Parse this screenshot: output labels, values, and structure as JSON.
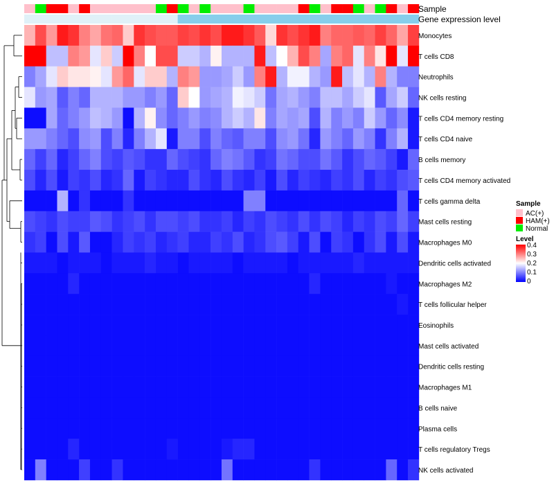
{
  "chart_data": {
    "type": "heatmap",
    "annotation_tracks": [
      {
        "name": "Sample",
        "values": [
          "AC(+)",
          "Normal",
          "HAM(+)",
          "HAM(+)",
          "AC(+)",
          "HAM(+)",
          "AC(+)",
          "AC(+)",
          "AC(+)",
          "AC(+)",
          "AC(+)",
          "AC(+)",
          "Normal",
          "HAM(+)",
          "Normal",
          "AC(+)",
          "Normal",
          "AC(+)",
          "AC(+)",
          "AC(+)",
          "Normal",
          "AC(+)",
          "AC(+)",
          "AC(+)",
          "AC(+)",
          "HAM(+)",
          "Normal",
          "AC(+)",
          "HAM(+)",
          "HAM(+)",
          "Normal",
          "AC(+)",
          "Normal",
          "HAM(+)",
          "AC(+)",
          "HAM(+)"
        ]
      },
      {
        "name": "Gene expression level",
        "values": [
          "low",
          "low",
          "low",
          "low",
          "low",
          "low",
          "low",
          "low",
          "low",
          "low",
          "low",
          "low",
          "low",
          "low",
          "high",
          "high",
          "high",
          "high",
          "high",
          "high",
          "high",
          "high",
          "high",
          "high",
          "high",
          "high",
          "high",
          "high",
          "high",
          "high",
          "high",
          "high",
          "high",
          "high",
          "high",
          "high"
        ]
      }
    ],
    "sample_colors": {
      "AC(+)": "#ffc0cb",
      "HAM(+)": "#ff0000",
      "Normal": "#00ee00"
    },
    "expression_colors": {
      "low": "#e0f1f8",
      "high": "#87ceeb"
    },
    "rows": [
      "Monocytes",
      "T cells CD8",
      "Neutrophils",
      "NK cells resting",
      "T cells CD4 memory resting",
      "T cells CD4 naive",
      "B cells memory",
      "T cells CD4 memory activated",
      "T cells gamma delta",
      "Mast cells resting",
      "Macrophages M0",
      "Dendritic cells activated",
      "Macrophages M2",
      "T cells follicular helper",
      "Eosinophils",
      "Mast cells activated",
      "Dendritic cells resting",
      "Macrophages M1",
      "B cells naive",
      "Plasma cells",
      "T cells regulatory  Tregs",
      "NK cells activated"
    ],
    "values": [
      [
        0.26,
        0.34,
        0.28,
        0.38,
        0.36,
        0.3,
        0.27,
        0.31,
        0.32,
        0.24,
        0.36,
        0.34,
        0.33,
        0.33,
        0.35,
        0.34,
        0.36,
        0.34,
        0.38,
        0.38,
        0.36,
        0.33,
        0.23,
        0.36,
        0.34,
        0.36,
        0.38,
        0.3,
        0.32,
        0.32,
        0.33,
        0.32,
        0.35,
        0.32,
        0.27,
        0.35
      ],
      [
        0.4,
        0.4,
        0.15,
        0.15,
        0.3,
        0.28,
        0.18,
        0.24,
        0.16,
        0.4,
        0.3,
        0.2,
        0.34,
        0.34,
        0.16,
        0.16,
        0.14,
        0.21,
        0.14,
        0.14,
        0.14,
        0.38,
        0.15,
        0.2,
        0.26,
        0.34,
        0.3,
        0.13,
        0.3,
        0.32,
        0.18,
        0.3,
        0.22,
        0.4,
        0.18,
        0.4
      ],
      [
        0.1,
        0.13,
        0.18,
        0.24,
        0.22,
        0.22,
        0.21,
        0.18,
        0.28,
        0.32,
        0.18,
        0.24,
        0.24,
        0.14,
        0.3,
        0.28,
        0.12,
        0.12,
        0.13,
        0.16,
        0.12,
        0.3,
        0.38,
        0.14,
        0.19,
        0.19,
        0.14,
        0.12,
        0.38,
        0.15,
        0.18,
        0.14,
        0.3,
        0.14,
        0.1,
        0.1
      ],
      [
        0.18,
        0.12,
        0.13,
        0.07,
        0.1,
        0.08,
        0.14,
        0.14,
        0.14,
        0.12,
        0.12,
        0.1,
        0.12,
        0.08,
        0.24,
        0.2,
        0.12,
        0.13,
        0.14,
        0.19,
        0.18,
        0.16,
        0.09,
        0.13,
        0.14,
        0.12,
        0.1,
        0.15,
        0.15,
        0.13,
        0.16,
        0.18,
        0.07,
        0.13,
        0.16,
        0.08
      ],
      [
        0.01,
        0.01,
        0.13,
        0.08,
        0.1,
        0.12,
        0.15,
        0.14,
        0.12,
        0.01,
        0.14,
        0.21,
        0.11,
        0.08,
        0.1,
        0.12,
        0.1,
        0.11,
        0.14,
        0.16,
        0.14,
        0.22,
        0.1,
        0.13,
        0.12,
        0.13,
        0.06,
        0.14,
        0.1,
        0.12,
        0.1,
        0.16,
        0.12,
        0.08,
        0.11,
        0.02
      ],
      [
        0.12,
        0.12,
        0.1,
        0.08,
        0.06,
        0.11,
        0.12,
        0.06,
        0.1,
        0.03,
        0.1,
        0.14,
        0.18,
        0.02,
        0.1,
        0.1,
        0.06,
        0.1,
        0.08,
        0.07,
        0.1,
        0.1,
        0.06,
        0.11,
        0.12,
        0.09,
        0.03,
        0.12,
        0.1,
        0.08,
        0.12,
        0.1,
        0.04,
        0.1,
        0.14,
        0.02
      ],
      [
        0.08,
        0.05,
        0.08,
        0.03,
        0.05,
        0.08,
        0.1,
        0.06,
        0.05,
        0.07,
        0.06,
        0.04,
        0.04,
        0.08,
        0.06,
        0.05,
        0.04,
        0.08,
        0.1,
        0.09,
        0.07,
        0.04,
        0.05,
        0.09,
        0.08,
        0.06,
        0.06,
        0.09,
        0.07,
        0.04,
        0.06,
        0.08,
        0.07,
        0.05,
        0.02,
        0.08
      ],
      [
        0.06,
        0.03,
        0.06,
        0.02,
        0.05,
        0.04,
        0.06,
        0.03,
        0.04,
        0.08,
        0.02,
        0.05,
        0.04,
        0.03,
        0.03,
        0.06,
        0.04,
        0.03,
        0.06,
        0.04,
        0.03,
        0.05,
        0.02,
        0.06,
        0.03,
        0.05,
        0.04,
        0.03,
        0.05,
        0.04,
        0.06,
        0.03,
        0.05,
        0.04,
        0.06,
        0.07
      ],
      [
        0.01,
        0.01,
        0.01,
        0.14,
        0.01,
        0.04,
        0.01,
        0.01,
        0.01,
        0.04,
        0.01,
        0.01,
        0.01,
        0.01,
        0.01,
        0.01,
        0.01,
        0.01,
        0.01,
        0.01,
        0.1,
        0.1,
        0.01,
        0.01,
        0.01,
        0.01,
        0.01,
        0.01,
        0.01,
        0.01,
        0.01,
        0.01,
        0.01,
        0.01,
        0.08,
        0.01
      ],
      [
        0.06,
        0.05,
        0.04,
        0.06,
        0.05,
        0.05,
        0.07,
        0.06,
        0.04,
        0.05,
        0.06,
        0.04,
        0.06,
        0.06,
        0.05,
        0.06,
        0.04,
        0.04,
        0.05,
        0.03,
        0.05,
        0.04,
        0.06,
        0.05,
        0.04,
        0.06,
        0.04,
        0.06,
        0.05,
        0.03,
        0.05,
        0.04,
        0.06,
        0.05,
        0.08,
        0.05
      ],
      [
        0.04,
        0.05,
        0.01,
        0.06,
        0.02,
        0.07,
        0.01,
        0.01,
        0.03,
        0.05,
        0.04,
        0.05,
        0.03,
        0.04,
        0.05,
        0.03,
        0.03,
        0.05,
        0.04,
        0.06,
        0.03,
        0.04,
        0.06,
        0.07,
        0.05,
        0.02,
        0.06,
        0.01,
        0.05,
        0.04,
        0.01,
        0.04,
        0.06,
        0.02,
        0.06,
        0.02
      ],
      [
        0.02,
        0.02,
        0.02,
        0.01,
        0.02,
        0.02,
        0.02,
        0.01,
        0.02,
        0.02,
        0.02,
        0.03,
        0.02,
        0.02,
        0.01,
        0.02,
        0.02,
        0.02,
        0.02,
        0.01,
        0.02,
        0.02,
        0.02,
        0.02,
        0.01,
        0.02,
        0.02,
        0.02,
        0.02,
        0.02,
        0.03,
        0.02,
        0.02,
        0.02,
        0.02,
        0.02
      ],
      [
        0.01,
        0.01,
        0.01,
        0.01,
        0.03,
        0.01,
        0.01,
        0.01,
        0.01,
        0.01,
        0.01,
        0.01,
        0.01,
        0.01,
        0.01,
        0.01,
        0.01,
        0.01,
        0.01,
        0.01,
        0.01,
        0.01,
        0.01,
        0.01,
        0.01,
        0.01,
        0.03,
        0.01,
        0.01,
        0.01,
        0.01,
        0.01,
        0.01,
        0.02,
        0.01,
        0.01
      ],
      [
        0.01,
        0.01,
        0.01,
        0.01,
        0.01,
        0.01,
        0.01,
        0.01,
        0.01,
        0.01,
        0.01,
        0.01,
        0.01,
        0.01,
        0.01,
        0.01,
        0.01,
        0.01,
        0.01,
        0.01,
        0.01,
        0.01,
        0.01,
        0.01,
        0.01,
        0.01,
        0.01,
        0.01,
        0.01,
        0.01,
        0.01,
        0.01,
        0.01,
        0.01,
        0.02,
        0.01
      ],
      [
        0.01,
        0.01,
        0.01,
        0.01,
        0.01,
        0.01,
        0.01,
        0.01,
        0.01,
        0.01,
        0.01,
        0.01,
        0.01,
        0.01,
        0.01,
        0.01,
        0.01,
        0.01,
        0.01,
        0.01,
        0.01,
        0.01,
        0.01,
        0.01,
        0.01,
        0.01,
        0.01,
        0.01,
        0.01,
        0.01,
        0.01,
        0.01,
        0.01,
        0.01,
        0.01,
        0.01
      ],
      [
        0.01,
        0.01,
        0.01,
        0.01,
        0.01,
        0.01,
        0.01,
        0.01,
        0.01,
        0.01,
        0.01,
        0.01,
        0.01,
        0.01,
        0.01,
        0.01,
        0.01,
        0.01,
        0.01,
        0.01,
        0.01,
        0.01,
        0.01,
        0.01,
        0.01,
        0.01,
        0.01,
        0.01,
        0.01,
        0.01,
        0.01,
        0.01,
        0.01,
        0.01,
        0.01,
        0.01
      ],
      [
        0.01,
        0.01,
        0.01,
        0.01,
        0.01,
        0.01,
        0.01,
        0.01,
        0.01,
        0.01,
        0.01,
        0.01,
        0.01,
        0.01,
        0.01,
        0.01,
        0.01,
        0.01,
        0.01,
        0.01,
        0.01,
        0.01,
        0.01,
        0.01,
        0.01,
        0.01,
        0.01,
        0.01,
        0.01,
        0.01,
        0.01,
        0.01,
        0.01,
        0.01,
        0.01,
        0.01
      ],
      [
        0.01,
        0.01,
        0.01,
        0.01,
        0.01,
        0.01,
        0.01,
        0.01,
        0.01,
        0.01,
        0.01,
        0.01,
        0.01,
        0.01,
        0.01,
        0.01,
        0.01,
        0.01,
        0.01,
        0.01,
        0.01,
        0.01,
        0.01,
        0.01,
        0.01,
        0.01,
        0.01,
        0.01,
        0.01,
        0.01,
        0.01,
        0.01,
        0.01,
        0.01,
        0.01,
        0.01
      ],
      [
        0.01,
        0.01,
        0.01,
        0.01,
        0.01,
        0.01,
        0.01,
        0.01,
        0.01,
        0.01,
        0.01,
        0.01,
        0.01,
        0.01,
        0.01,
        0.01,
        0.01,
        0.01,
        0.01,
        0.01,
        0.01,
        0.01,
        0.01,
        0.01,
        0.01,
        0.01,
        0.01,
        0.01,
        0.01,
        0.01,
        0.01,
        0.01,
        0.01,
        0.01,
        0.01,
        0.01
      ],
      [
        0.01,
        0.01,
        0.01,
        0.01,
        0.01,
        0.01,
        0.01,
        0.01,
        0.01,
        0.01,
        0.01,
        0.01,
        0.01,
        0.01,
        0.01,
        0.01,
        0.01,
        0.01,
        0.01,
        0.01,
        0.01,
        0.01,
        0.01,
        0.01,
        0.01,
        0.01,
        0.01,
        0.01,
        0.01,
        0.01,
        0.01,
        0.01,
        0.01,
        0.01,
        0.01,
        0.01
      ],
      [
        0.01,
        0.01,
        0.01,
        0.01,
        0.03,
        0.01,
        0.01,
        0.01,
        0.01,
        0.01,
        0.01,
        0.01,
        0.01,
        0.02,
        0.01,
        0.01,
        0.01,
        0.01,
        0.02,
        0.03,
        0.03,
        0.01,
        0.01,
        0.01,
        0.01,
        0.01,
        0.01,
        0.01,
        0.01,
        0.01,
        0.01,
        0.01,
        0.01,
        0.01,
        0.01,
        0.01
      ],
      [
        0.01,
        0.1,
        0.01,
        0.01,
        0.01,
        0.05,
        0.01,
        0.01,
        0.04,
        0.01,
        0.01,
        0.01,
        0.01,
        0.01,
        0.01,
        0.01,
        0.01,
        0.01,
        0.09,
        0.01,
        0.01,
        0.01,
        0.01,
        0.01,
        0.01,
        0.01,
        0.04,
        0.01,
        0.01,
        0.01,
        0.01,
        0.01,
        0.01,
        0.08,
        0.01,
        0.04
      ]
    ],
    "color_scale": {
      "stops": [
        0,
        0.2,
        0.4
      ],
      "colors": [
        "#0000ff",
        "#ffffff",
        "#ff0000"
      ]
    },
    "legend": {
      "sample_title": "Sample",
      "sample_items": [
        "AC(+)",
        "HAM(+)",
        "Normal"
      ],
      "level_title": "Level",
      "level_ticks": [
        "0.4",
        "0.3",
        "0.2",
        "0.1",
        "0"
      ],
      "position": "right"
    },
    "title": "",
    "xlabel": "",
    "ylabel": ""
  }
}
